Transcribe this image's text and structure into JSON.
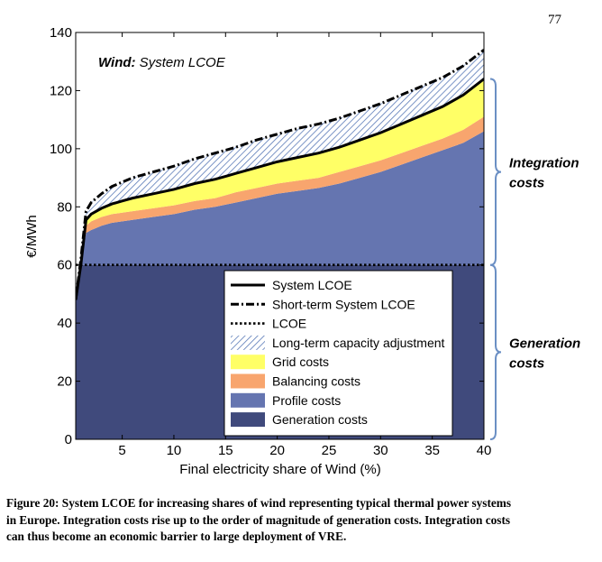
{
  "page_number": "77",
  "chart_data": {
    "type": "area",
    "title_bold": "Wind:",
    "title_rest": " System LCOE",
    "xlabel": "Final electricity share of Wind (%)",
    "ylabel": "€/MWh",
    "xlim": [
      0.5,
      40
    ],
    "ylim": [
      0,
      140
    ],
    "xticks": [
      5,
      10,
      15,
      20,
      25,
      30,
      35,
      40
    ],
    "yticks": [
      0,
      20,
      40,
      60,
      80,
      100,
      120,
      140
    ],
    "x": [
      0.5,
      1,
      1.5,
      2,
      3,
      4,
      5,
      6,
      8,
      10,
      12,
      14,
      16,
      18,
      20,
      22,
      24,
      26,
      28,
      30,
      32,
      34,
      36,
      38,
      40
    ],
    "stack": [
      {
        "name": "Generation costs",
        "color": "#404a7c",
        "hatch": false,
        "values": [
          48,
          60,
          60,
          60,
          60,
          60,
          60,
          60,
          60,
          60,
          60,
          60,
          60,
          60,
          60,
          60,
          60,
          60,
          60,
          60,
          60,
          60,
          60,
          60,
          60
        ]
      },
      {
        "name": "Profile costs",
        "color": "#6575b0",
        "hatch": false,
        "values": [
          0,
          0,
          11,
          12,
          13.5,
          14.5,
          15,
          15.5,
          16.5,
          17.5,
          19,
          20,
          21.5,
          23,
          24.5,
          25.5,
          26.5,
          28,
          30,
          32,
          34.5,
          37,
          39.5,
          42,
          46
        ]
      },
      {
        "name": "Balancing costs",
        "color": "#f8a56e",
        "hatch": false,
        "values": [
          0,
          0,
          2.5,
          3,
          3,
          3,
          3,
          3,
          3,
          3,
          3,
          3,
          3.5,
          3.5,
          3.5,
          3.5,
          3.5,
          4,
          4,
          4,
          4,
          4,
          4,
          4.5,
          5
        ]
      },
      {
        "name": "Grid costs",
        "color": "#ffff66",
        "hatch": false,
        "values": [
          0,
          0,
          2,
          2.5,
          3,
          3.5,
          4,
          4.5,
          5,
          5.5,
          6,
          6.5,
          7,
          7,
          7.5,
          8,
          8.5,
          8.5,
          9,
          9.5,
          10,
          10.5,
          11,
          12,
          13
        ]
      },
      {
        "name": "Long-term capacity adjustment",
        "color": "#ffffff",
        "hatch": true,
        "values": [
          0,
          2,
          3,
          4,
          5,
          6,
          6.5,
          7,
          7.5,
          8,
          8.5,
          9,
          9,
          9.5,
          9.5,
          10,
          10,
          10,
          10,
          10,
          10,
          10,
          10,
          10,
          10
        ]
      }
    ],
    "lines": [
      {
        "name": "System LCOE",
        "style": "solid",
        "values": [
          48,
          60,
          75.5,
          77.5,
          79.5,
          81,
          82,
          83,
          84.5,
          86,
          88,
          89.5,
          91.5,
          93.5,
          95.5,
          97,
          98.5,
          100.5,
          103,
          105.5,
          108.5,
          111.5,
          114.5,
          118.5,
          124
        ]
      },
      {
        "name": "Short-term System LCOE",
        "style": "dashdot",
        "values": [
          48,
          62,
          78.5,
          81.5,
          84.5,
          87,
          88.5,
          90,
          92,
          94,
          96.5,
          98.5,
          100.5,
          103,
          105,
          107,
          108.5,
          110.5,
          113,
          115.5,
          118.5,
          121.5,
          124.5,
          128.5,
          134
        ]
      },
      {
        "name": "LCOE",
        "style": "dotted",
        "values": [
          60,
          60,
          60,
          60,
          60,
          60,
          60,
          60,
          60,
          60,
          60,
          60,
          60,
          60,
          60,
          60,
          60,
          60,
          60,
          60,
          60,
          60,
          60,
          60,
          60
        ]
      }
    ],
    "legend": [
      "System LCOE",
      "Short-term System LCOE",
      "LCOE",
      "Long-term capacity adjustment",
      "Grid costs",
      "Balancing costs",
      "Profile costs",
      "Generation costs"
    ],
    "legend_location": "lower-right",
    "annotations": [
      {
        "text_lines": [
          "Integration",
          "costs"
        ],
        "y_range": [
          60,
          124
        ]
      },
      {
        "text_lines": [
          "Generation",
          "costs"
        ],
        "y_range": [
          0,
          60
        ]
      }
    ]
  },
  "caption": [
    "Figure 20: System LCOE for increasing shares of wind representing typical thermal power systems",
    "in Europe. Integration costs rise up to the order of magnitude of generation costs. Integration costs",
    "can thus become an economic barrier to large deployment of VRE."
  ]
}
